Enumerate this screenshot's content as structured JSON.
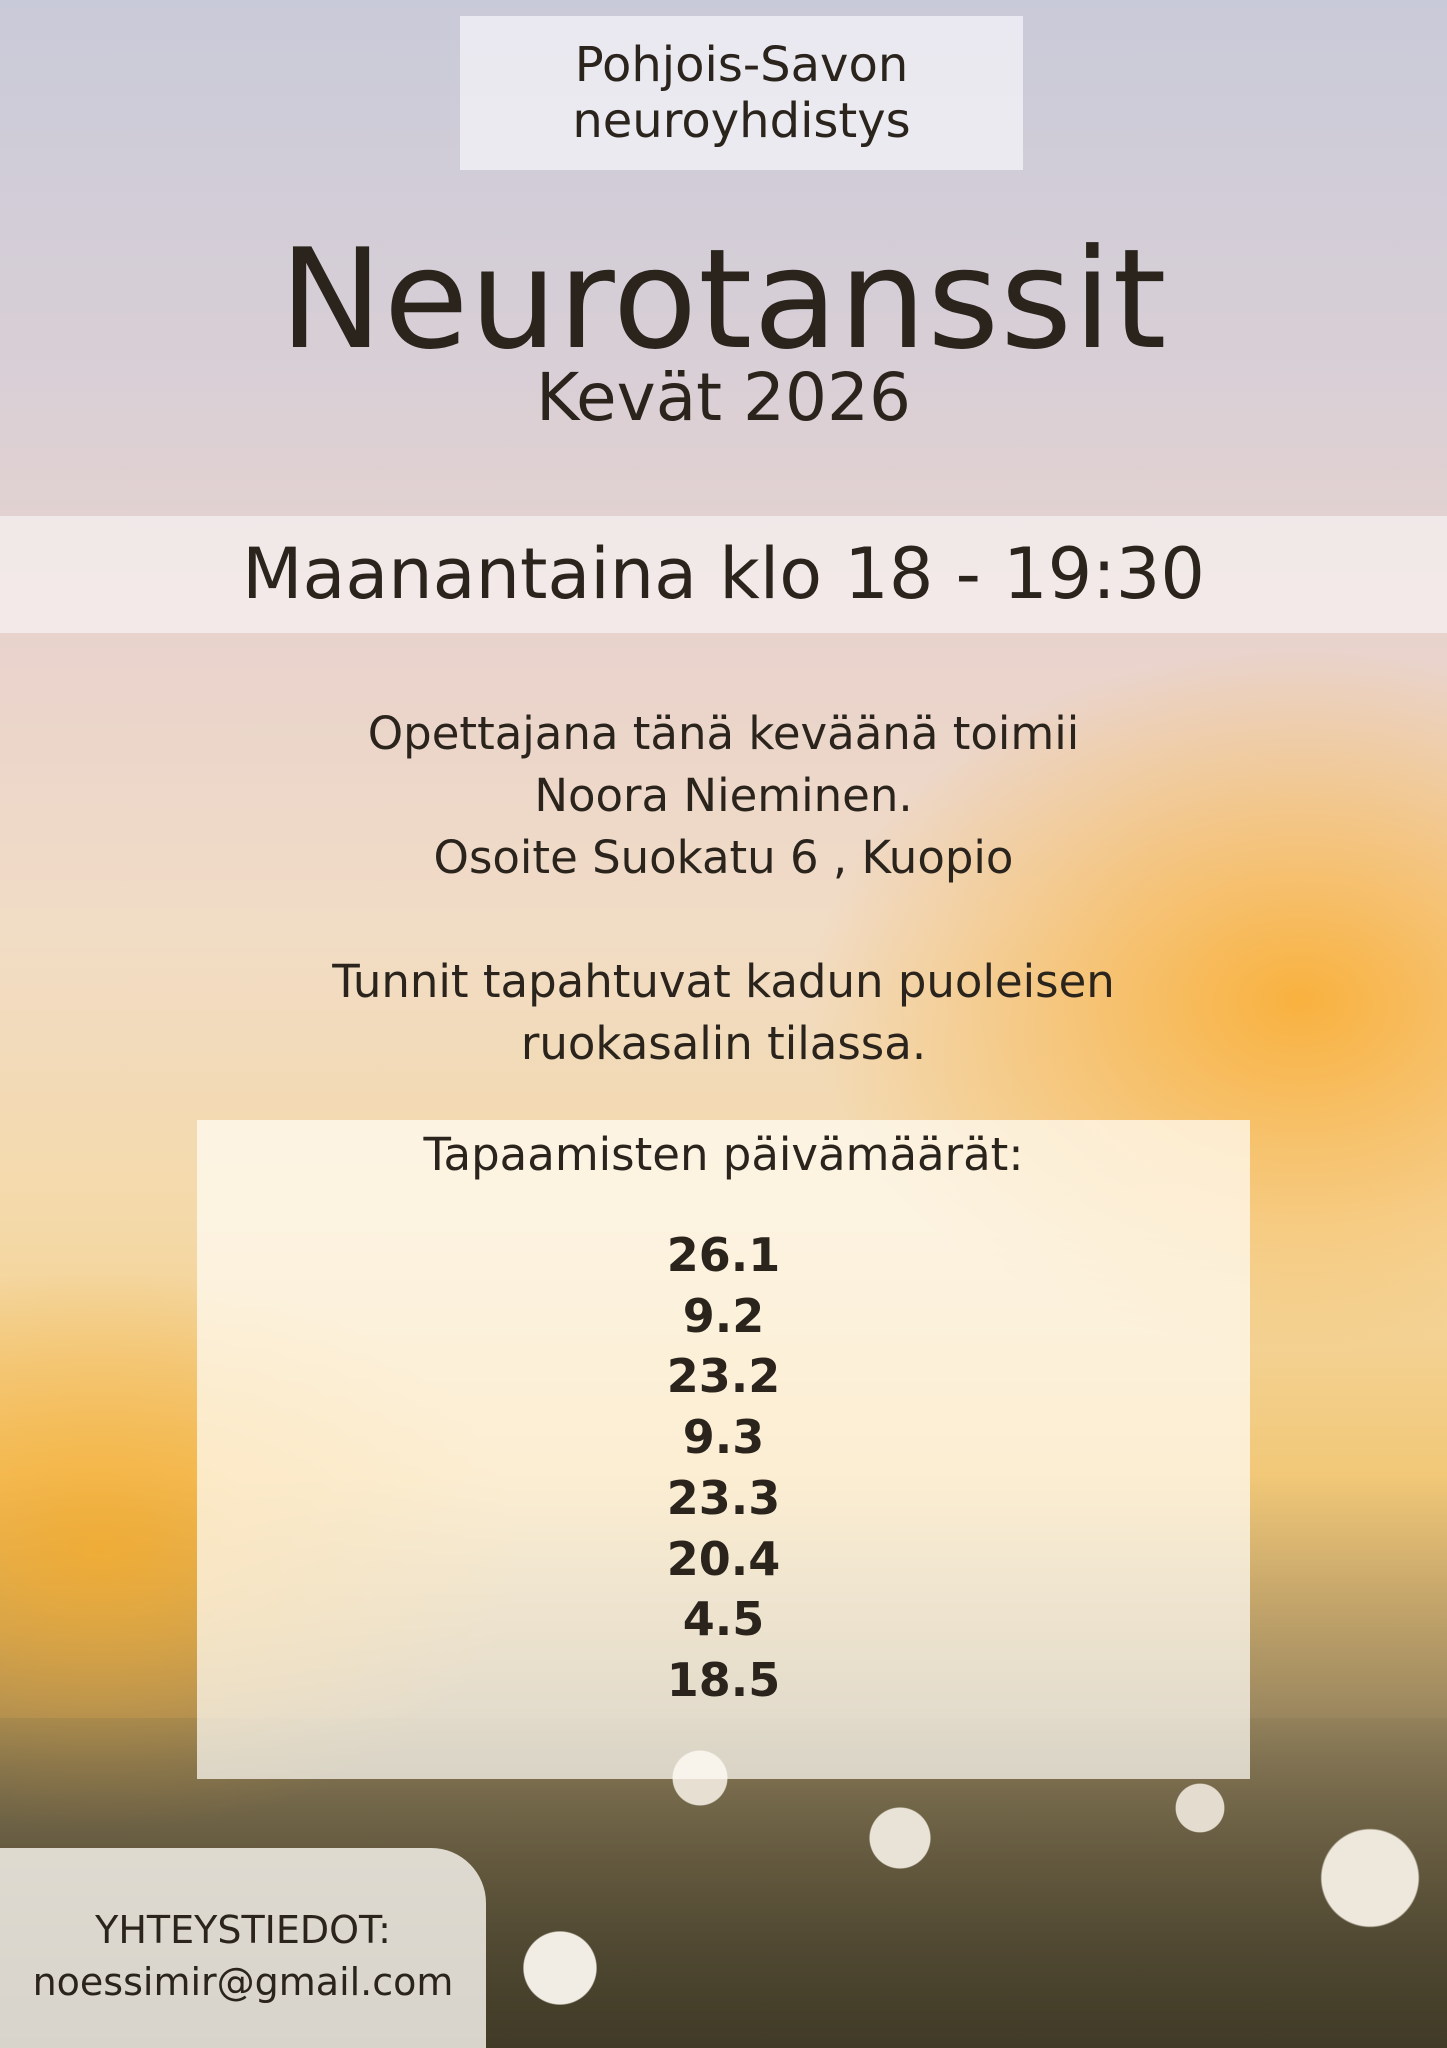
{
  "organization": {
    "line1": "Pohjois-Savon",
    "line2": "neuroyhdistys"
  },
  "title": "Neurotanssit",
  "season": "Kevät 2026",
  "schedule": "Maanantaina klo 18 - 19:30",
  "info": {
    "lines1": [
      "Opettajana tänä keväänä toimii",
      "Noora Nieminen.",
      "Osoite Suokatu 6 , Kuopio"
    ],
    "lines2": [
      "Tunnit tapahtuvat kadun puoleisen",
      "ruokasalin tilassa."
    ]
  },
  "dates": {
    "heading": "Tapaamisten päivämäärät:",
    "items": [
      "26.1",
      "9.2",
      "23.2",
      "9.3",
      "23.3",
      "20.4",
      "4.5",
      "18.5"
    ]
  },
  "contact": {
    "label": "YHTEYSTIEDOT:",
    "email": "noessimir@gmail.com"
  },
  "colors": {
    "text": "#2a241d",
    "sky_top": "#c9cad9",
    "sunset": "#f2c878"
  }
}
